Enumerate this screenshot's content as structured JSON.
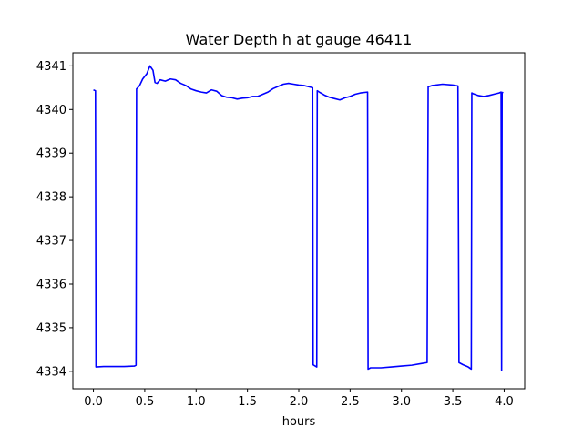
{
  "chart_data": {
    "type": "line",
    "title": "Water Depth h at gauge 46411",
    "xlabel": "hours",
    "ylabel": "",
    "xlim": [
      -0.2,
      4.2
    ],
    "ylim": [
      4333.6,
      4341.3
    ],
    "xticks": [
      0.0,
      0.5,
      1.0,
      1.5,
      2.0,
      2.5,
      3.0,
      3.5,
      4.0
    ],
    "xtick_labels": [
      "0.0",
      "0.5",
      "1.0",
      "1.5",
      "2.0",
      "2.5",
      "3.0",
      "3.5",
      "4.0"
    ],
    "yticks": [
      4334,
      4335,
      4336,
      4337,
      4338,
      4339,
      4340,
      4341
    ],
    "ytick_labels": [
      "4334",
      "4335",
      "4336",
      "4337",
      "4338",
      "4339",
      "4340",
      "4341"
    ],
    "grid": false,
    "series": [
      {
        "color": "#0000ff",
        "x": [
          0.0,
          0.02,
          0.025,
          0.1,
          0.3,
          0.4,
          0.415,
          0.42,
          0.45,
          0.48,
          0.52,
          0.55,
          0.58,
          0.6,
          0.62,
          0.65,
          0.7,
          0.75,
          0.8,
          0.85,
          0.9,
          0.95,
          1.0,
          1.05,
          1.1,
          1.15,
          1.2,
          1.25,
          1.3,
          1.35,
          1.4,
          1.45,
          1.5,
          1.55,
          1.6,
          1.65,
          1.7,
          1.75,
          1.8,
          1.85,
          1.9,
          1.95,
          2.0,
          2.05,
          2.1,
          2.135,
          2.14,
          2.175,
          2.18,
          2.2,
          2.25,
          2.3,
          2.35,
          2.4,
          2.45,
          2.5,
          2.55,
          2.6,
          2.67,
          2.675,
          2.7,
          2.8,
          2.9,
          3.0,
          3.1,
          3.2,
          3.25,
          3.26,
          3.3,
          3.4,
          3.5,
          3.55,
          3.56,
          3.6,
          3.65,
          3.68,
          3.685,
          3.7,
          3.75,
          3.8,
          3.85,
          3.9,
          3.95,
          3.97,
          3.975,
          3.98,
          3.99
        ],
        "y": [
          4340.45,
          4340.43,
          4334.1,
          4334.11,
          4334.11,
          4334.12,
          4334.14,
          4340.47,
          4340.55,
          4340.7,
          4340.82,
          4341.0,
          4340.9,
          4340.62,
          4340.6,
          4340.68,
          4340.65,
          4340.7,
          4340.68,
          4340.6,
          4340.55,
          4340.47,
          4340.43,
          4340.4,
          4340.38,
          4340.45,
          4340.42,
          4340.32,
          4340.28,
          4340.27,
          4340.24,
          4340.26,
          4340.27,
          4340.3,
          4340.3,
          4340.35,
          4340.4,
          4340.48,
          4340.53,
          4340.58,
          4340.6,
          4340.58,
          4340.56,
          4340.55,
          4340.52,
          4340.5,
          4334.15,
          4334.1,
          4340.43,
          4340.4,
          4340.33,
          4340.28,
          4340.25,
          4340.22,
          4340.27,
          4340.3,
          4340.35,
          4340.38,
          4340.4,
          4334.05,
          4334.08,
          4334.08,
          4334.1,
          4334.12,
          4334.14,
          4334.18,
          4334.2,
          4340.52,
          4340.55,
          4340.58,
          4340.56,
          4340.54,
          4334.2,
          4334.15,
          4334.1,
          4334.05,
          4340.38,
          4340.36,
          4340.32,
          4340.3,
          4340.32,
          4340.35,
          4340.38,
          4340.4,
          4334.02,
          4340.38,
          4340.4
        ]
      }
    ]
  }
}
